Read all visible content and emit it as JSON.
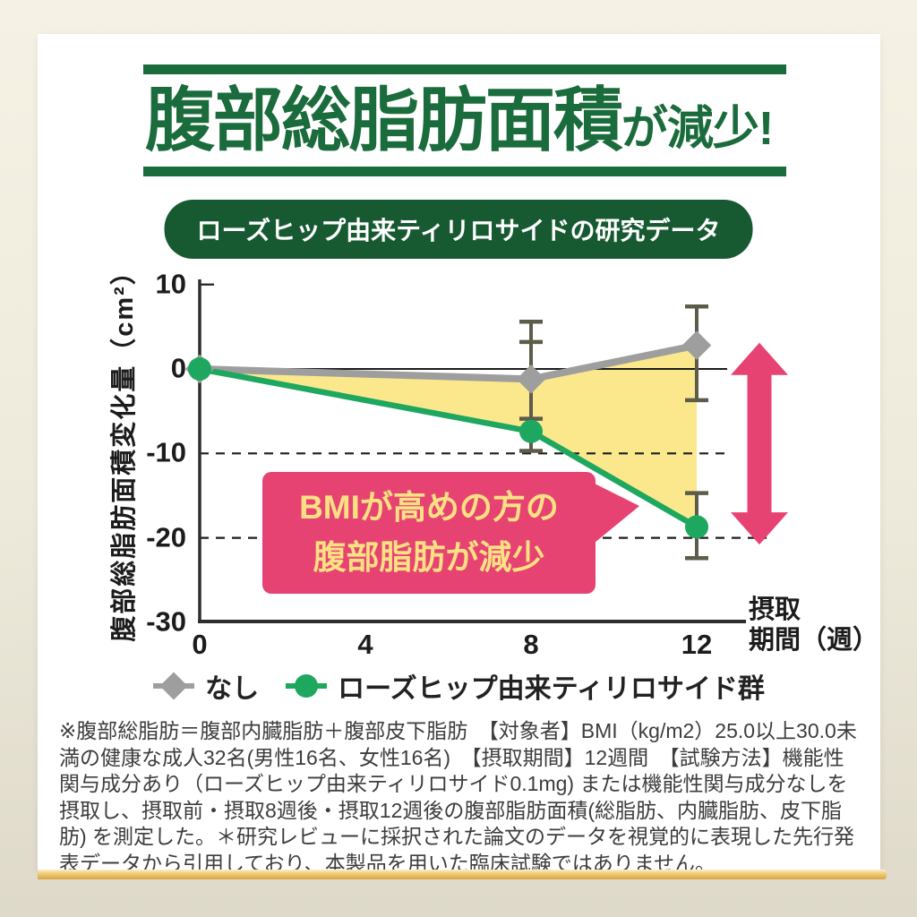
{
  "header": {
    "title_main": "腹部総脂肪面積",
    "title_suffix": "が減少!",
    "badge": "ローズヒップ由来ティリロサイドの研究データ",
    "accent_green": "#1b6c3c",
    "badge_bg": "#175a32"
  },
  "chart_data": {
    "type": "line",
    "x": [
      0,
      8,
      12
    ],
    "xticks": [
      0,
      4,
      8,
      12
    ],
    "yticks": [
      10,
      0,
      -10,
      -20,
      -30
    ],
    "ylim": [
      -30,
      10
    ],
    "xlabel": "摂取期間（週）",
    "xlabel_line1": "摂取",
    "xlabel_line2": "期間（週）",
    "ylabel": "腹部総脂肪面積変化量（cm²）",
    "gridlines": {
      "solid_at": 0,
      "dashed_at": [
        -10,
        -20
      ]
    },
    "series": [
      {
        "name": "なし",
        "marker": "diamond",
        "color": "#9e9e9e",
        "values": [
          0,
          -1.2,
          2.8
        ],
        "error_bars": [
          null,
          [
            -5.9,
            5.6
          ],
          [
            -3.7,
            7.4
          ]
        ]
      },
      {
        "name": "ローズヒップ由来ティリロサイド群",
        "marker": "circle",
        "color": "#1ea75f",
        "values": [
          0,
          -7.4,
          -18.7
        ],
        "error_bars": [
          null,
          [
            -9.7,
            3.2
          ],
          [
            -22.4,
            -14.7
          ]
        ]
      }
    ],
    "fill_between_color": "#fbe88c",
    "error_bar_color": "#5d5b4a",
    "diff_arrow": {
      "color": "#e74372",
      "from_value": 3.1,
      "to_value": -20.8
    },
    "legend_position": "bottom",
    "grid": true
  },
  "callout": {
    "line1": "BMIが高めの方の",
    "line2": "腹部脂肪が減少",
    "bg": "#e74372",
    "text_color": "#fbe084"
  },
  "legend": [
    {
      "label": "なし",
      "color": "#9e9e9e",
      "marker": "diamond"
    },
    {
      "label": "ローズヒップ由来ティリロサイド群",
      "color": "#1ea75f",
      "marker": "circle"
    }
  ],
  "footnote": "※腹部総脂肪＝腹部内臓脂肪＋腹部皮下脂肪　【対象者】BMI（kg/m2）25.0以上30.0未満の健康な成人32名(男性16名、女性16名)　【摂取期間】12週間　【試験方法】機能性関与成分あり（ローズヒップ由来ティリロサイド0.1mg) または機能性関与成分なしを摂取し、摂取前・摂取8週後・摂取12週後の腹部脂肪面積(総脂肪、内臓脂肪、皮下脂肪) を測定した。＊研究レビューに採択された論文のデータを視覚的に表現した先行発表データから引用しており、本製品を用いた臨床試験ではありません。",
  "footer_bar_colors": [
    "#fdf3cd",
    "#f2d489",
    "#e3b75c",
    "#d9a344"
  ],
  "background_colors": [
    "#f5f1e4",
    "#ded9c9"
  ]
}
